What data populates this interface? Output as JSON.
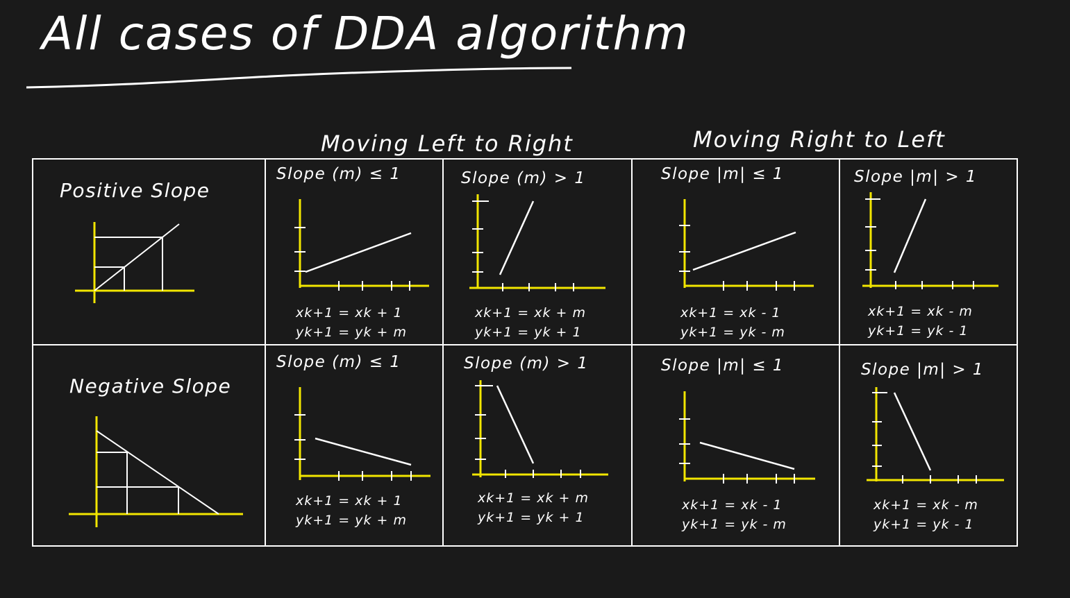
{
  "title": "All cases of DDA algorithm",
  "headers": {
    "left_to_right": "Moving Left to Right",
    "right_to_left": "Moving Right to Left"
  },
  "rows": [
    {
      "label": "Positive Slope",
      "cells": [
        {
          "title": "Slope (m) ≤ 1",
          "eq1": "xk+1 = xk + 1",
          "eq2": "yk+1 = yk + m"
        },
        {
          "title": "Slope (m) > 1",
          "eq1": "xk+1 = xk + m",
          "eq2": "yk+1 = yk + 1"
        },
        {
          "title": "Slope |m| ≤ 1",
          "eq1": "xk+1 = xk - 1",
          "eq2": "yk+1 = yk - m"
        },
        {
          "title": "Slope |m| > 1",
          "eq1": "xk+1 = xk - m",
          "eq2": "yk+1 = yk - 1"
        }
      ]
    },
    {
      "label": "Negative Slope",
      "cells": [
        {
          "title": "Slope (m) ≤ 1",
          "eq1": "xk+1 = xk + 1",
          "eq2": "yk+1 = yk + m"
        },
        {
          "title": "Slope (m) > 1",
          "eq1": "xk+1 = xk + m",
          "eq2": "yk+1 = yk + 1"
        },
        {
          "title": "Slope |m| ≤ 1",
          "eq1": "xk+1 = xk - 1",
          "eq2": "yk+1 = yk - m"
        },
        {
          "title": "Slope |m| > 1",
          "eq1": "xk+1 = xk - m",
          "eq2": "yk+1 = yk - 1"
        }
      ]
    }
  ],
  "colors": {
    "background": "#1a1a1a",
    "ink": "#ffffff",
    "axis": "#f2e600"
  }
}
